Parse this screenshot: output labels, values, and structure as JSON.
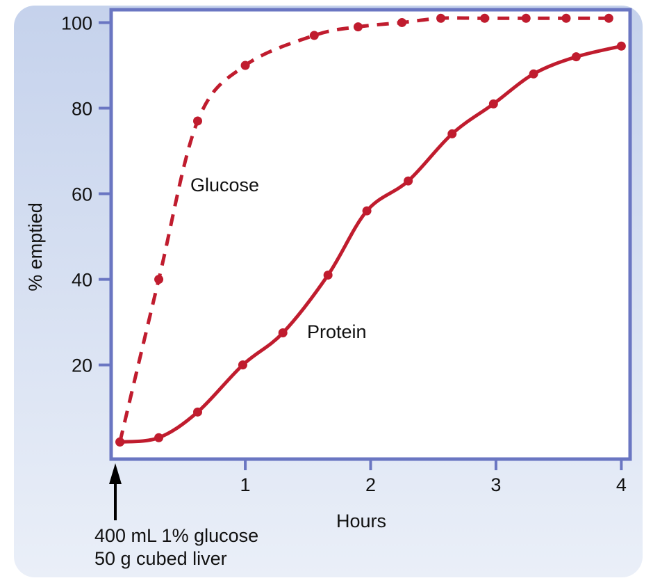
{
  "chart_data": {
    "type": "line",
    "xlabel": "Hours",
    "ylabel": "% emptied",
    "xlim": [
      -0.07,
      4.07
    ],
    "ylim": [
      -2,
      103
    ],
    "xticks": [
      1,
      2,
      3,
      4
    ],
    "yticks": [
      20,
      40,
      60,
      80,
      100
    ],
    "grid": false,
    "series": [
      {
        "name": "Glucose",
        "style": "dashed",
        "x": [
          0.0,
          0.31,
          0.62,
          1.0,
          1.55,
          1.9,
          2.25,
          2.56,
          2.91,
          3.24,
          3.56,
          3.9
        ],
        "y": [
          2,
          40,
          77,
          90,
          97,
          99,
          100,
          101,
          101,
          101,
          101,
          101
        ],
        "label": "Glucose"
      },
      {
        "name": "Protein",
        "style": "solid",
        "x": [
          0.0,
          0.31,
          0.62,
          0.98,
          1.3,
          1.66,
          1.97,
          2.3,
          2.65,
          2.98,
          3.3,
          3.64,
          4.0
        ],
        "y": [
          2,
          3,
          9,
          20,
          27.5,
          41,
          56,
          63,
          74,
          81,
          88,
          92,
          94.5
        ],
        "label": "Protein"
      }
    ],
    "annotations": {
      "start_arrow_lines": [
        "400 mL 1% glucose",
        "50 g cubed liver"
      ]
    },
    "colors": {
      "series": "#c01c2e",
      "axis": "#6a76c2",
      "background_top": "#c5d2ec",
      "background_bottom": "#eaeff8",
      "text": "#111111"
    }
  }
}
